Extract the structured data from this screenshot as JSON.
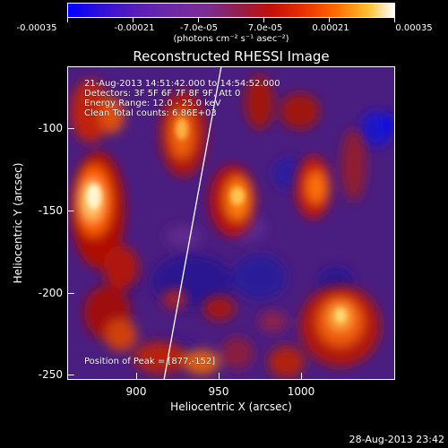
{
  "colorbar": {
    "ticks": [
      "-0.00035",
      "-0.00021",
      "-7.0e-05",
      "7.0e-05",
      "0.00021",
      "0.00035"
    ],
    "unit": "(photons cm⁻² s⁻¹ asec⁻²)",
    "range": [
      -0.00035,
      0.00035
    ]
  },
  "title": "Reconstructed RHESSI Image",
  "info": {
    "line1": "21-Aug-2013 14:51:42.000 to 14:54:52.000",
    "line2": "Detectors: 3F 5F 6F 7F 8F 9F, Att 0",
    "line3": "Energy Range: 12.0 - 25.0 keV",
    "line4": "Clean    Total counts: 6.86E+03"
  },
  "peak": "Position of Peak = [877,-152]",
  "axes": {
    "xlabel": "Heliocentric X (arcsec)",
    "ylabel": "Heliocentric Y (arcsec)",
    "xticks": [
      "900",
      "950",
      "1000"
    ],
    "yticks": [
      "-100",
      "-150",
      "-200",
      "-250"
    ]
  },
  "timestamp": "28-Aug-2013 23:42"
}
